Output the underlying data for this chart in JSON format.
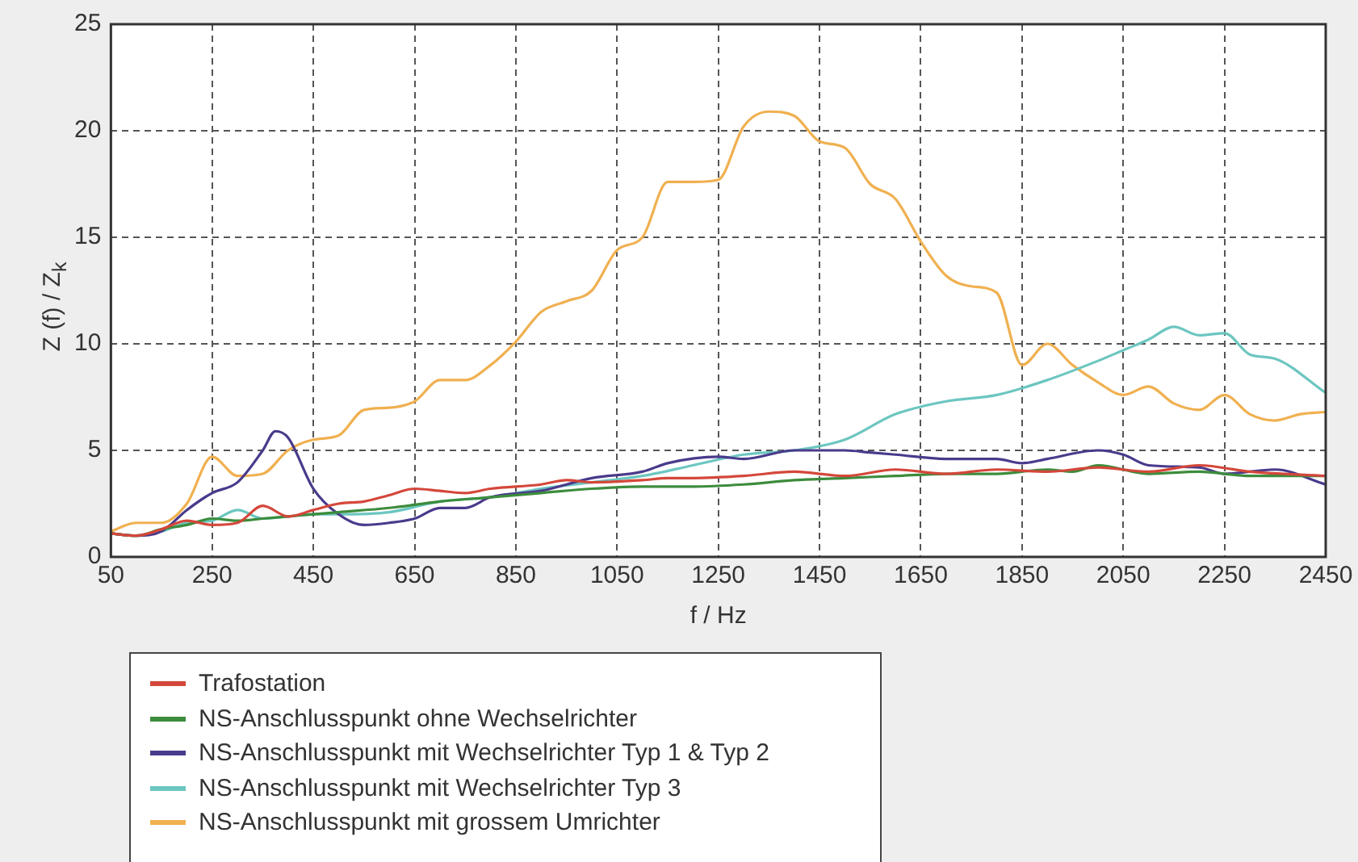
{
  "chart_data": {
    "type": "line",
    "xlabel": "f / Hz",
    "ylabel": "Z (f) / Z$_{k}$",
    "xlim": [
      50,
      2450
    ],
    "xticks": [
      50,
      250,
      450,
      650,
      850,
      1050,
      1250,
      1450,
      1650,
      1850,
      2050,
      2250,
      2450
    ],
    "ylim": [
      0,
      25
    ],
    "yticks": [
      0,
      5,
      10,
      15,
      20,
      25
    ],
    "grid": true,
    "legend": "bottom",
    "marker": "none",
    "line_style": "solid",
    "series": [
      {
        "name": "Trafostation",
        "color": "#d4473a",
        "x": [
          50,
          100,
          150,
          200,
          250,
          300,
          350,
          400,
          450,
          500,
          550,
          600,
          650,
          700,
          750,
          800,
          900,
          950,
          1000,
          1100,
          1150,
          1200,
          1300,
          1400,
          1500,
          1600,
          1700,
          1800,
          1900,
          2000,
          2100,
          2200,
          2300,
          2450
        ],
        "values": [
          1.1,
          1.0,
          1.3,
          1.7,
          1.5,
          1.6,
          2.4,
          1.9,
          2.2,
          2.5,
          2.6,
          2.9,
          3.2,
          3.1,
          3.0,
          3.2,
          3.4,
          3.6,
          3.5,
          3.6,
          3.7,
          3.7,
          3.8,
          4.0,
          3.8,
          4.1,
          3.9,
          4.1,
          4.0,
          4.2,
          4.0,
          4.3,
          4.0,
          3.8
        ]
      },
      {
        "name": "NS-Anschlusspunkt ohne Wechselrichter",
        "color": "#3c8c3c",
        "x": [
          50,
          100,
          150,
          200,
          250,
          300,
          350,
          400,
          450,
          500,
          600,
          700,
          800,
          900,
          1000,
          1100,
          1200,
          1300,
          1400,
          1500,
          1600,
          1700,
          1800,
          1900,
          1950,
          2000,
          2100,
          2200,
          2300,
          2450
        ],
        "values": [
          1.1,
          1.0,
          1.3,
          1.5,
          1.8,
          1.7,
          1.8,
          1.9,
          2.0,
          2.1,
          2.3,
          2.6,
          2.8,
          3.0,
          3.2,
          3.3,
          3.3,
          3.4,
          3.6,
          3.7,
          3.8,
          3.9,
          3.9,
          4.1,
          4.0,
          4.3,
          3.9,
          4.0,
          3.8,
          3.8
        ]
      },
      {
        "name": "NS-Anschlusspunkt mit Wechselrichter Typ 1 & Typ 2",
        "color": "#4a3a8c",
        "x": [
          50,
          100,
          150,
          200,
          250,
          300,
          350,
          375,
          400,
          450,
          500,
          550,
          600,
          650,
          700,
          750,
          800,
          900,
          1000,
          1100,
          1150,
          1250,
          1300,
          1400,
          1500,
          1550,
          1600,
          1700,
          1800,
          1850,
          1900,
          2000,
          2050,
          2100,
          2200,
          2250,
          2350,
          2450
        ],
        "values": [
          1.1,
          1.0,
          1.2,
          2.2,
          3.0,
          3.5,
          5.0,
          5.9,
          5.6,
          3.2,
          2.0,
          1.5,
          1.6,
          1.8,
          2.3,
          2.3,
          2.8,
          3.1,
          3.7,
          4.0,
          4.4,
          4.7,
          4.6,
          5.0,
          5.0,
          4.9,
          4.8,
          4.6,
          4.6,
          4.4,
          4.6,
          5.0,
          4.8,
          4.3,
          4.2,
          3.9,
          4.1,
          3.4
        ]
      },
      {
        "name": "NS-Anschlusspunkt mit Wechselrichter Typ 3",
        "color": "#6cc6c0",
        "x": [
          50,
          100,
          150,
          200,
          250,
          300,
          350,
          400,
          450,
          500,
          600,
          700,
          800,
          900,
          1000,
          1100,
          1200,
          1300,
          1400,
          1500,
          1600,
          1700,
          1800,
          1900,
          2000,
          2050,
          2100,
          2150,
          2200,
          2250,
          2300,
          2350,
          2450
        ],
        "values": [
          1.1,
          1.0,
          1.2,
          1.6,
          1.7,
          2.2,
          1.8,
          1.9,
          2.0,
          2.0,
          2.1,
          2.6,
          2.8,
          3.2,
          3.5,
          3.8,
          4.3,
          4.8,
          5.0,
          5.5,
          6.7,
          7.3,
          7.6,
          8.3,
          9.2,
          9.7,
          10.2,
          10.8,
          10.4,
          10.5,
          9.5,
          9.3,
          7.7
        ]
      },
      {
        "name": "NS-Anschlusspunkt mit grossem Umrichter",
        "color": "#f0b050",
        "x": [
          50,
          100,
          150,
          200,
          250,
          300,
          350,
          400,
          450,
          500,
          550,
          600,
          650,
          700,
          750,
          800,
          850,
          900,
          950,
          1000,
          1050,
          1100,
          1150,
          1200,
          1250,
          1300,
          1350,
          1400,
          1450,
          1500,
          1550,
          1600,
          1650,
          1700,
          1750,
          1800,
          1850,
          1900,
          1950,
          2000,
          2050,
          2100,
          2150,
          2200,
          2250,
          2300,
          2350,
          2400,
          2450
        ],
        "values": [
          1.2,
          1.6,
          1.6,
          2.5,
          4.7,
          3.8,
          3.9,
          5.0,
          5.5,
          5.7,
          6.9,
          7.0,
          7.3,
          8.3,
          8.3,
          9.0,
          10.1,
          11.5,
          12.0,
          12.5,
          14.4,
          15.0,
          17.6,
          17.6,
          17.7,
          20.2,
          20.9,
          20.7,
          19.5,
          19.2,
          17.5,
          16.8,
          14.8,
          13.2,
          12.7,
          12.4,
          9.0,
          10.0,
          9.0,
          8.2,
          7.6,
          8.0,
          7.2,
          6.9,
          7.6,
          6.7,
          6.4,
          6.7,
          6.8
        ]
      }
    ]
  }
}
